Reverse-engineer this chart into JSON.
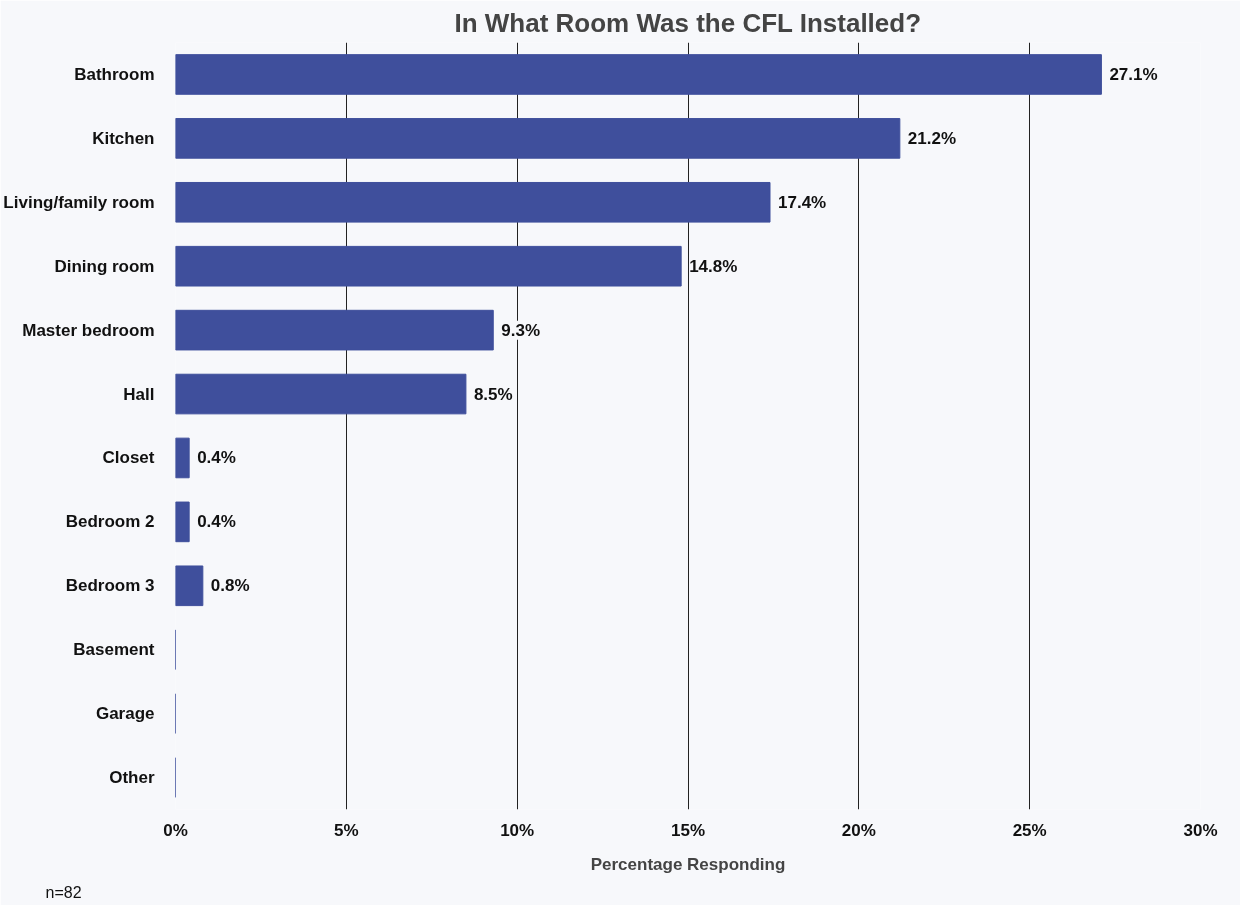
{
  "chart_data": {
    "type": "bar",
    "orientation": "horizontal",
    "title": "In What Room Was the CFL Installed?",
    "xlabel": "Percentage Responding",
    "categories": [
      "Bathroom",
      "Kitchen",
      "Living/family room",
      "Dining room",
      "Master bedroom",
      "Hall",
      "Closet",
      "Bedroom 2",
      "Bedroom 3",
      "Basement",
      "Garage",
      "Other"
    ],
    "values": [
      27.1,
      21.2,
      17.4,
      14.8,
      9.3,
      8.5,
      0.4,
      0.4,
      0.8,
      0,
      0,
      0
    ],
    "value_labels": [
      "27.1%",
      "21.2%",
      "17.4%",
      "14.8%",
      "9.3%",
      "8.5%",
      "0.4%",
      "0.4%",
      "0.8%",
      null,
      null,
      null
    ],
    "color": "#3f4f9c",
    "xlim": [
      0,
      30
    ],
    "xticks": [
      {
        "value": 0,
        "label": "0%"
      },
      {
        "value": 5,
        "label": "5%"
      },
      {
        "value": 10,
        "label": "10%"
      },
      {
        "value": 15,
        "label": "15%"
      },
      {
        "value": 20,
        "label": "20%"
      },
      {
        "value": 25,
        "label": "25%"
      },
      {
        "value": 30,
        "label": "30%"
      }
    ],
    "grid": "x",
    "annotations": [
      "n=82"
    ]
  }
}
